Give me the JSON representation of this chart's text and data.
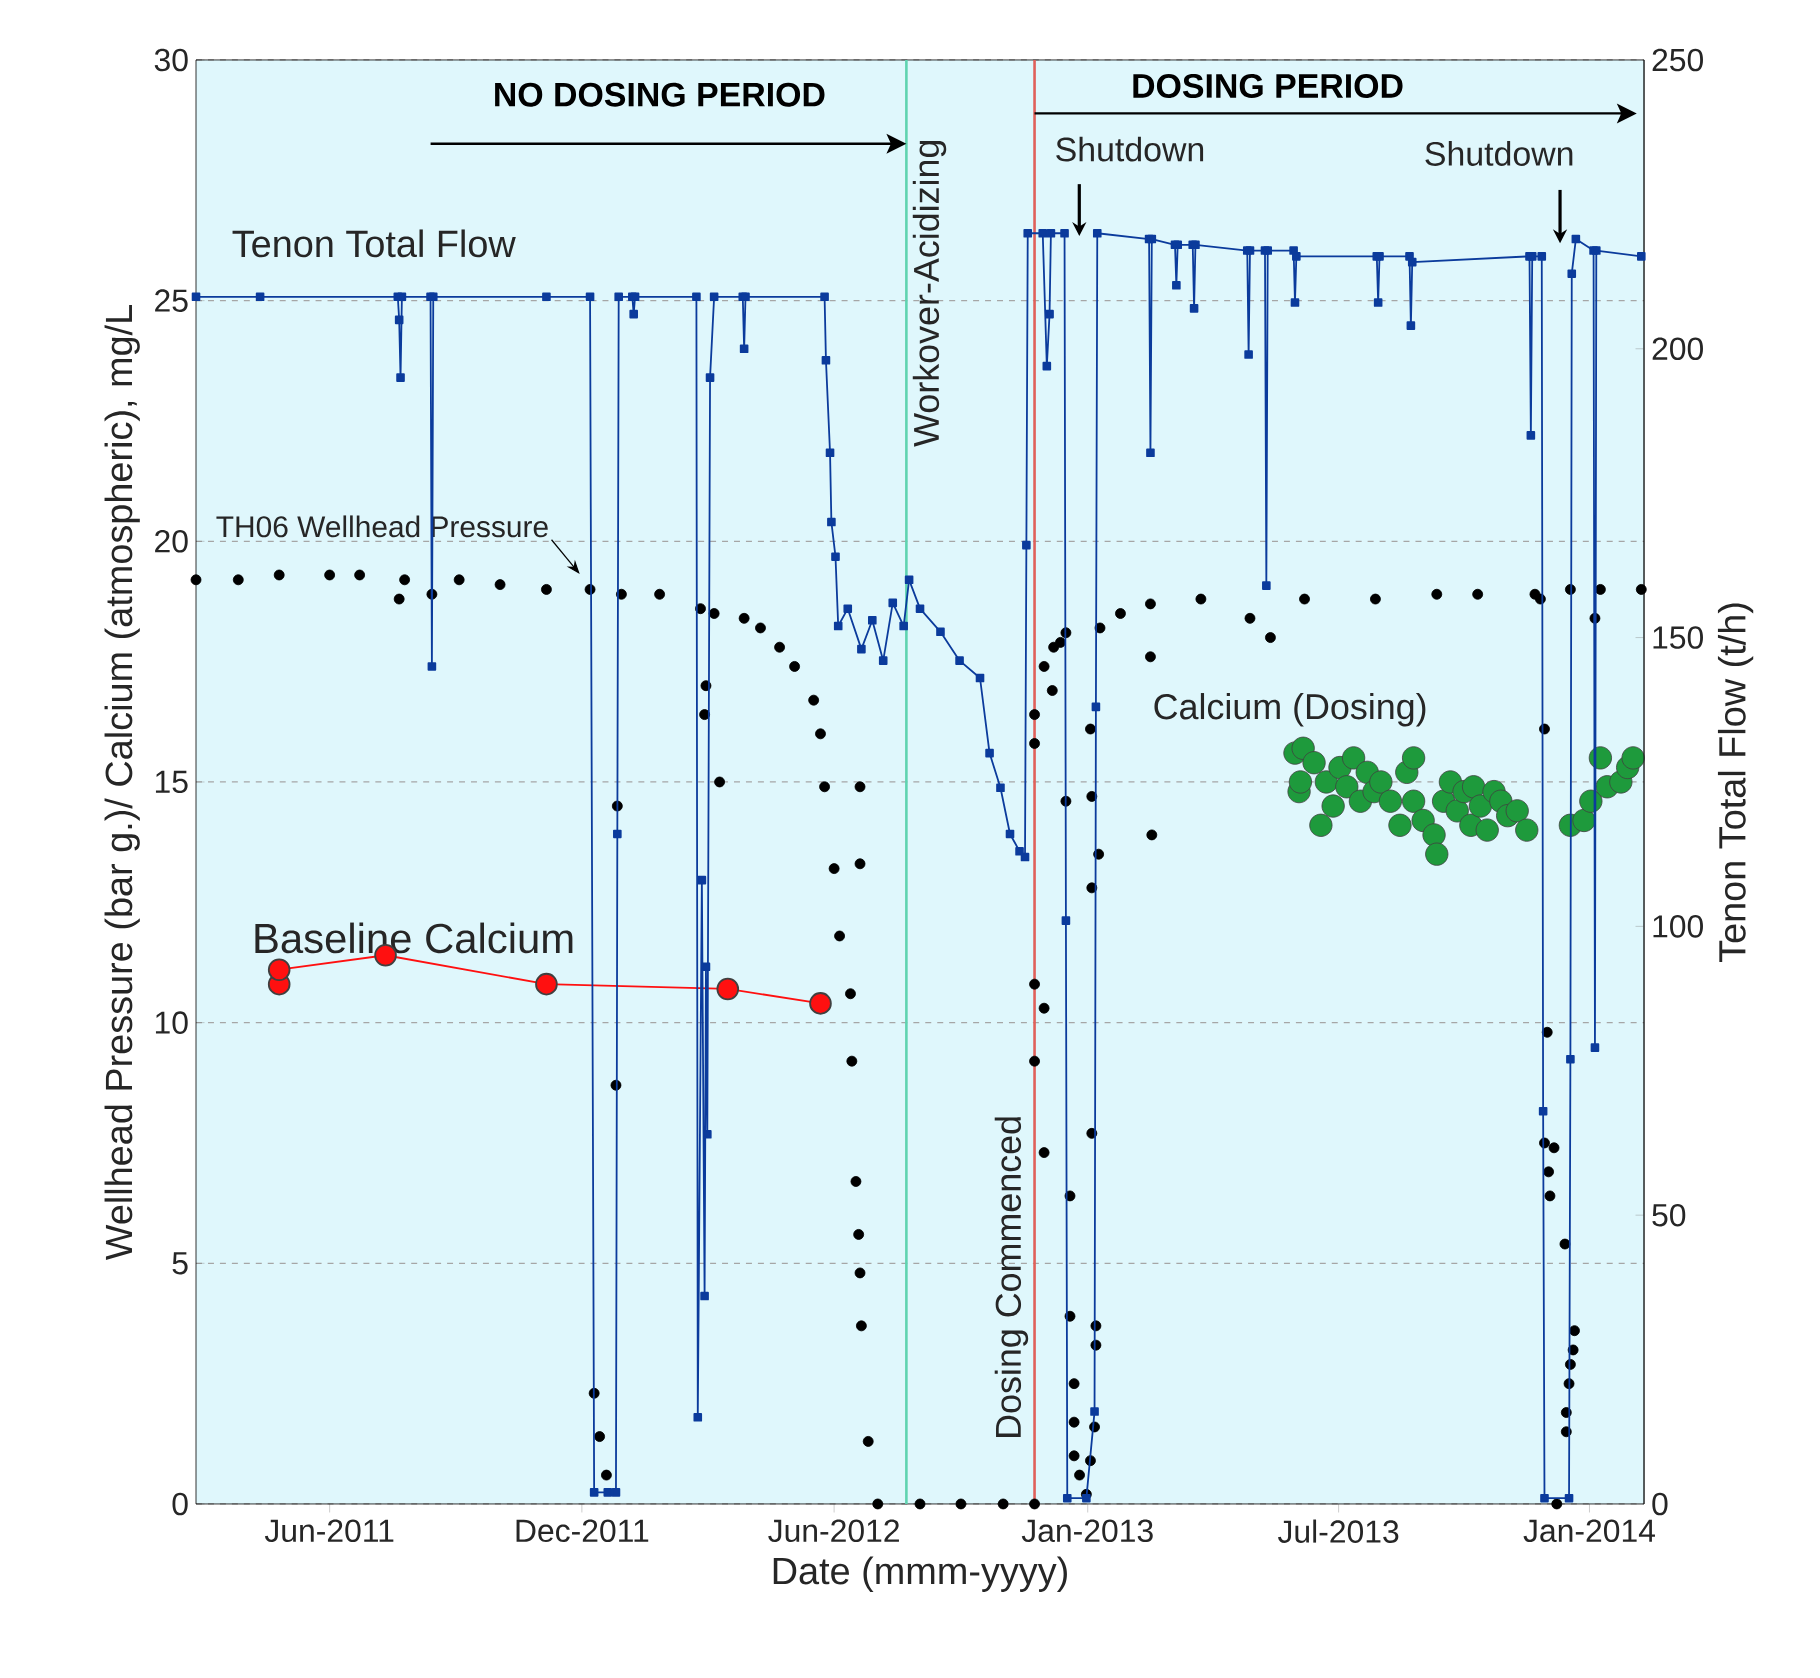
{
  "chart_data": {
    "type": "line",
    "xlabel": "Date (mmm-yyyy)",
    "ylabel": "Wellhead Pressure (bar g.)/ Calcium (atmospheric), mg/L",
    "y2label": "Tenon Total Flow (t/h)",
    "xlim": [
      "2011-03-20",
      "2014-02-14"
    ],
    "xticks": [
      {
        "value": "2011-06-26",
        "label": "Jun-2011"
      },
      {
        "value": "2011-12-28",
        "label": "Dec-2011"
      },
      {
        "value": "2012-06-30",
        "label": "Jun-2012"
      },
      {
        "value": "2013-01-02",
        "label": "Jan-2013"
      },
      {
        "value": "2013-07-05",
        "label": "Jul-2013"
      },
      {
        "value": "2014-01-05",
        "label": "Jan-2014"
      }
    ],
    "ylim": [
      0,
      30
    ],
    "yticks": [
      0,
      5,
      10,
      15,
      20,
      25,
      30
    ],
    "y2lim": [
      0,
      250
    ],
    "y2ticks": [
      0,
      50,
      100,
      150,
      200,
      250
    ],
    "grid": "y",
    "series": [
      {
        "name": "Tenon Total Flow",
        "axis": "y2",
        "color": "#0b3b9c",
        "marker": "square",
        "x": [
          "2011-03-20",
          "2011-05-06",
          "2011-08-15",
          "2011-08-16",
          "2011-08-17",
          "2011-08-18",
          "2011-09-08",
          "2011-09-09",
          "2011-09-10",
          "2011-12-02",
          "2012-01-03",
          "2012-01-06",
          "2012-01-16",
          "2012-01-22",
          "2012-01-23",
          "2012-01-24",
          "2012-02-03",
          "2012-02-04",
          "2012-02-05",
          "2012-03-21",
          "2012-03-22",
          "2012-03-25",
          "2012-03-27",
          "2012-03-28",
          "2012-03-29",
          "2012-03-31",
          "2012-04-03",
          "2012-04-24",
          "2012-04-25",
          "2012-04-26",
          "2012-06-23",
          "2012-06-24",
          "2012-06-27",
          "2012-06-28",
          "2012-07-01",
          "2012-07-03",
          "2012-07-10",
          "2012-07-20",
          "2012-07-28",
          "2012-08-05",
          "2012-08-12",
          "2012-08-20",
          "2012-08-24",
          "2012-09-01",
          "2012-09-16",
          "2012-09-30",
          "2012-10-15",
          "2012-10-22",
          "2012-10-30",
          "2012-11-06",
          "2012-11-13",
          "2012-11-17",
          "2012-11-18",
          "2012-11-19",
          "2012-11-30",
          "2012-12-03",
          "2012-12-05",
          "2012-12-06",
          "2012-12-16",
          "2012-12-17",
          "2012-12-18",
          "2013-01-01",
          "2013-01-07",
          "2013-01-08",
          "2013-01-09",
          "2013-02-16",
          "2013-02-17",
          "2013-02-18",
          "2013-03-07",
          "2013-03-08",
          "2013-03-09",
          "2013-03-20",
          "2013-03-21",
          "2013-03-22",
          "2013-04-29",
          "2013-04-30",
          "2013-05-01",
          "2013-05-12",
          "2013-05-13",
          "2013-05-14",
          "2013-06-02",
          "2013-06-03",
          "2013-06-04",
          "2013-08-02",
          "2013-08-03",
          "2013-08-04",
          "2013-08-26",
          "2013-08-27",
          "2013-08-28",
          "2013-11-22",
          "2013-11-23",
          "2013-11-24",
          "2013-12-01",
          "2013-12-02",
          "2013-12-03",
          "2013-12-21",
          "2013-12-22",
          "2013-12-23",
          "2013-12-26",
          "2014-01-08",
          "2014-01-09",
          "2014-01-10",
          "2014-02-12"
        ],
        "values": [
          209,
          209,
          209,
          205,
          195,
          209,
          209,
          145,
          209,
          209,
          209,
          2,
          2,
          2,
          116,
          209,
          209,
          206,
          209,
          209,
          15,
          108,
          36,
          93,
          64,
          195,
          209,
          209,
          200,
          209,
          209,
          198,
          182,
          170,
          164,
          152,
          155,
          148,
          153,
          146,
          156,
          152,
          160,
          155,
          151,
          146,
          143,
          130,
          124,
          116,
          113,
          112,
          166,
          220,
          220,
          197,
          206,
          220,
          220,
          101,
          1,
          1,
          16,
          138,
          220,
          219,
          182,
          219,
          218,
          211,
          218,
          218,
          207,
          218,
          217,
          199,
          217,
          217,
          159,
          217,
          217,
          208,
          216,
          216,
          208,
          216,
          216,
          204,
          215,
          216,
          185,
          216,
          216,
          68,
          1,
          1,
          77,
          213,
          219,
          217,
          79,
          217,
          216
        ]
      },
      {
        "name": "TH06 Wellhead Pressure",
        "type": "scatter",
        "color": "#000000",
        "marker": "circle",
        "x": [
          "2011-03-20",
          "2011-04-20",
          "2011-05-20",
          "2011-06-26",
          "2011-07-18",
          "2011-08-16",
          "2011-08-20",
          "2011-09-09",
          "2011-09-29",
          "2011-10-29",
          "2011-12-02",
          "2012-01-03",
          "2012-01-06",
          "2012-01-10",
          "2012-01-15",
          "2012-01-22",
          "2012-01-23",
          "2012-01-26",
          "2012-02-23",
          "2012-03-24",
          "2012-03-27",
          "2012-03-28",
          "2012-04-03",
          "2012-04-07",
          "2012-04-25",
          "2012-05-07",
          "2012-05-21",
          "2012-06-01",
          "2012-06-15",
          "2012-06-20",
          "2012-06-23",
          "2012-06-30",
          "2012-07-04",
          "2012-07-12",
          "2012-07-13",
          "2012-07-16",
          "2012-07-18",
          "2012-07-19",
          "2012-07-19",
          "2012-07-19",
          "2012-07-20",
          "2012-07-25",
          "2012-08-01",
          "2012-09-01",
          "2012-10-01",
          "2012-11-01",
          "2012-11-24",
          "2012-11-24",
          "2012-11-24",
          "2012-11-24",
          "2012-11-24",
          "2012-12-01",
          "2012-12-01",
          "2012-12-01",
          "2012-12-07",
          "2012-12-08",
          "2012-12-13",
          "2012-12-17",
          "2012-12-17",
          "2012-12-20",
          "2012-12-20",
          "2012-12-23",
          "2012-12-23",
          "2012-12-23",
          "2012-12-27",
          "2013-01-01",
          "2013-01-04",
          "2013-01-04",
          "2013-01-05",
          "2013-01-05",
          "2013-01-05",
          "2013-01-07",
          "2013-01-08",
          "2013-01-08",
          "2013-01-10",
          "2013-01-11",
          "2013-01-26",
          "2013-02-17",
          "2013-02-17",
          "2013-02-18",
          "2013-03-26",
          "2013-05-01",
          "2013-05-16",
          "2013-06-10",
          "2013-08-01",
          "2013-09-15",
          "2013-10-15",
          "2013-11-26",
          "2013-11-30",
          "2013-12-03",
          "2013-12-03",
          "2013-12-05",
          "2013-12-06",
          "2013-12-07",
          "2013-12-10",
          "2013-12-12",
          "2013-12-18",
          "2013-12-19",
          "2013-12-19",
          "2013-12-21",
          "2013-12-22",
          "2013-12-22",
          "2013-12-24",
          "2013-12-25",
          "2014-01-09",
          "2014-01-13",
          "2014-02-12"
        ],
        "values": [
          19.2,
          19.2,
          19.3,
          19.3,
          19.3,
          18.8,
          19.2,
          18.9,
          19.2,
          19.1,
          19.0,
          19.0,
          2.3,
          1.4,
          0.6,
          8.7,
          14.5,
          18.9,
          18.9,
          18.6,
          16.4,
          17.0,
          18.5,
          15.0,
          18.4,
          18.2,
          17.8,
          17.4,
          16.7,
          16.0,
          14.9,
          13.2,
          11.8,
          10.6,
          9.2,
          6.7,
          5.6,
          4.8,
          14.9,
          13.3,
          3.7,
          1.3,
          0,
          0,
          0,
          0,
          0,
          10.8,
          9.2,
          16.4,
          15.8,
          10.3,
          7.3,
          17.4,
          16.9,
          17.8,
          17.9,
          18.1,
          14.6,
          6.4,
          3.9,
          2.5,
          1.7,
          1.0,
          0.6,
          0.2,
          0.9,
          16.1,
          7.7,
          12.8,
          14.7,
          1.6,
          3.7,
          3.3,
          13.5,
          18.2,
          18.5,
          18.7,
          17.6,
          13.9,
          18.8,
          18.4,
          18.0,
          18.8,
          18.8,
          18.9,
          18.9,
          18.9,
          18.8,
          16.1,
          7.5,
          9.8,
          6.9,
          6.4,
          7.4,
          0,
          5.4,
          1.5,
          1.9,
          2.5,
          2.9,
          19.0,
          3.2,
          3.6,
          18.4,
          19.0,
          19.0
        ]
      },
      {
        "name": "Baseline Calcium",
        "color": "#ff1010",
        "marker": "circle",
        "x": [
          "2011-05-20",
          "2011-05-20",
          "2011-08-06",
          "2011-12-02",
          "2012-04-13",
          "2012-06-20"
        ],
        "values": [
          10.8,
          11.1,
          11.4,
          10.8,
          10.7,
          10.4
        ]
      },
      {
        "name": "Calcium (Dosing)",
        "type": "scatter",
        "color": "#1e9a3c",
        "marker": "circle",
        "x": [
          "2013-06-03",
          "2013-06-06",
          "2013-06-07",
          "2013-06-09",
          "2013-06-17",
          "2013-06-22",
          "2013-06-26",
          "2013-07-01",
          "2013-07-06",
          "2013-07-11",
          "2013-07-16",
          "2013-07-21",
          "2013-07-26",
          "2013-07-31",
          "2013-08-05",
          "2013-08-12",
          "2013-08-19",
          "2013-08-24",
          "2013-08-29",
          "2013-08-29",
          "2013-09-05",
          "2013-09-13",
          "2013-09-15",
          "2013-09-20",
          "2013-09-25",
          "2013-09-30",
          "2013-10-05",
          "2013-10-10",
          "2013-10-12",
          "2013-10-17",
          "2013-10-22",
          "2013-10-27",
          "2013-11-01",
          "2013-11-06",
          "2013-11-13",
          "2013-11-20",
          "2013-12-22",
          "2014-01-01",
          "2014-01-06",
          "2014-01-13",
          "2014-01-18",
          "2014-01-28",
          "2014-02-02",
          "2014-02-06"
        ],
        "values": [
          15.6,
          14.8,
          15.0,
          15.7,
          15.4,
          14.1,
          15.0,
          14.5,
          15.3,
          14.9,
          15.5,
          14.6,
          15.2,
          14.8,
          15.0,
          14.6,
          14.1,
          15.2,
          15.5,
          14.6,
          14.2,
          13.9,
          13.5,
          14.6,
          15.0,
          14.4,
          14.8,
          14.1,
          14.9,
          14.5,
          14.0,
          14.8,
          14.6,
          14.3,
          14.4,
          14.0,
          14.1,
          14.2,
          14.6,
          15.5,
          14.9,
          15.0,
          15.3,
          15.5
        ]
      }
    ],
    "ref_lines": [
      {
        "axis": "x",
        "value": "2012-08-22",
        "label": "Workover-Acidizing",
        "color": "#5fd3b0"
      },
      {
        "axis": "x",
        "value": "2012-11-24",
        "label": "Dosing Commenced",
        "color": "#e0605a"
      }
    ],
    "annotations": [
      "NO DOSING PERIOD",
      "DOSING PERIOD",
      "Shutdown",
      "Shutdown"
    ]
  }
}
